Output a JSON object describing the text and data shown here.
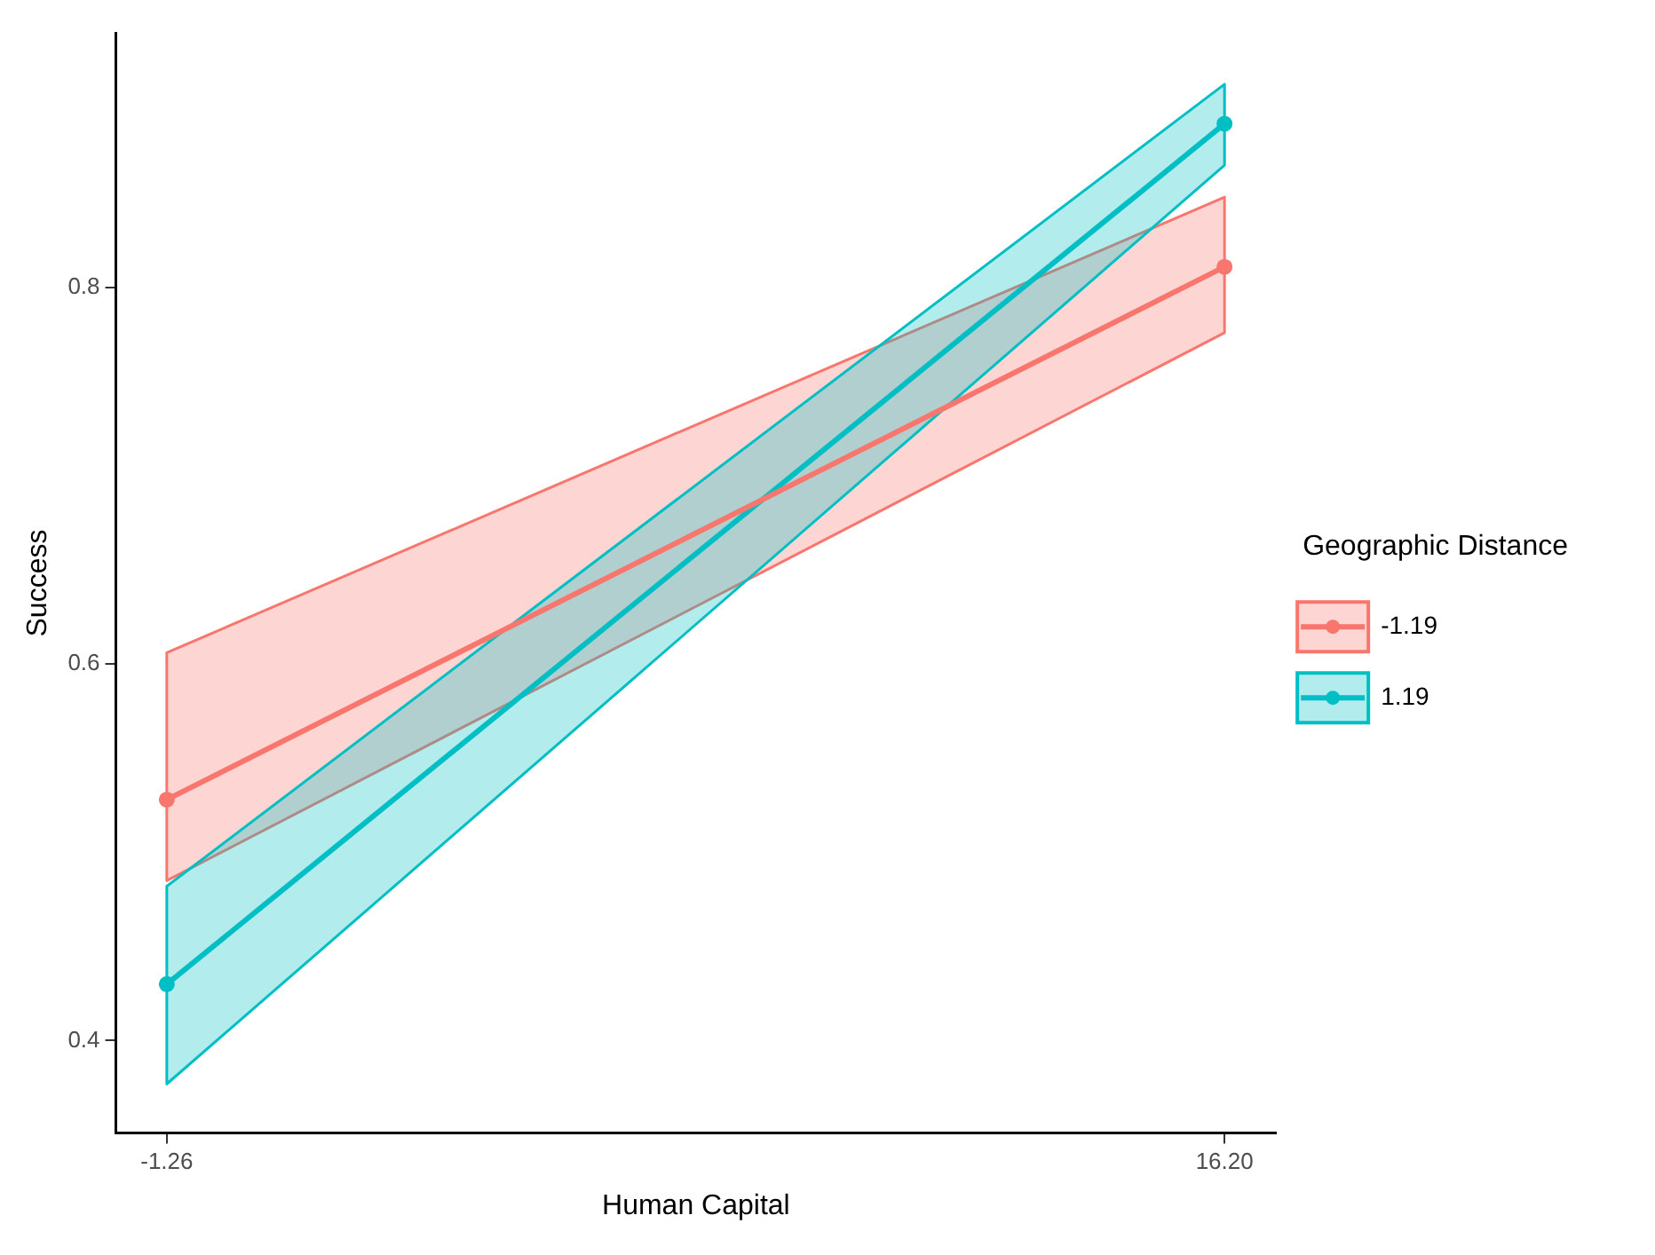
{
  "chart_data": {
    "type": "line",
    "xlabel": "Human Capital",
    "ylabel": "Success",
    "legend_title": "Geographic Distance",
    "x": [
      -1.26,
      16.2
    ],
    "series": [
      {
        "name": "-1.19",
        "color": "#f8766d",
        "values": [
          0.528,
          0.811
        ],
        "lower": [
          0.485,
          0.776
        ],
        "upper": [
          0.606,
          0.848
        ]
      },
      {
        "name": "1.19",
        "color": "#00bfc4",
        "values": [
          0.43,
          0.887
        ],
        "lower": [
          0.377,
          0.865
        ],
        "upper": [
          0.482,
          0.908
        ]
      }
    ],
    "xlim": [
      -2.1,
      17.05
    ],
    "xticks": [
      {
        "value": -1.26,
        "label": "-1.26"
      },
      {
        "value": 16.2,
        "label": "16.20"
      }
    ],
    "ylim": [
      0.351,
      0.935
    ],
    "yticks": [
      0.4,
      0.6,
      0.8
    ],
    "grid": false,
    "legend": "right",
    "marker": "circle",
    "line_style": "solid"
  }
}
